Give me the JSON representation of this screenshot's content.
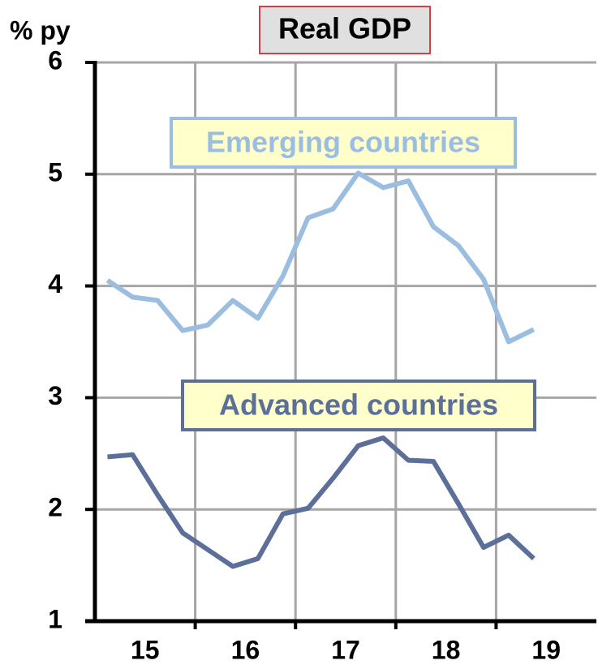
{
  "chart_data": {
    "type": "line",
    "title": "Real GDP",
    "y_label": "% py",
    "x": [
      15.125,
      15.375,
      15.625,
      15.875,
      16.125,
      16.375,
      16.625,
      16.875,
      17.125,
      17.375,
      17.625,
      17.875,
      18.125,
      18.375,
      18.625,
      18.875,
      19.125,
      19.375
    ],
    "series": [
      {
        "name": "Emerging countries",
        "color": "#9bbde0",
        "values": [
          4.05,
          3.9,
          3.87,
          3.6,
          3.65,
          3.87,
          3.71,
          4.09,
          4.61,
          4.69,
          5.01,
          4.88,
          4.94,
          4.53,
          4.36,
          4.06,
          3.5,
          3.61
        ]
      },
      {
        "name": "Advanced countries",
        "color": "#5b6f99",
        "values": [
          2.47,
          2.49,
          2.13,
          1.79,
          1.64,
          1.49,
          1.56,
          1.96,
          2.01,
          2.28,
          2.57,
          2.64,
          2.44,
          2.43,
          2.05,
          1.66,
          1.77,
          1.56
        ]
      }
    ],
    "xlim": [
      15,
      20
    ],
    "xgrid": [
      16,
      17,
      18,
      19
    ],
    "xticks": [
      {
        "value": 15.5,
        "label": "15"
      },
      {
        "value": 16.5,
        "label": "16"
      },
      {
        "value": 17.5,
        "label": "17"
      },
      {
        "value": 18.5,
        "label": "18"
      },
      {
        "value": 19.5,
        "label": "19"
      }
    ],
    "ylim": [
      1,
      6
    ],
    "yticks": [
      1,
      2,
      3,
      4,
      5,
      6
    ],
    "grid": true
  }
}
